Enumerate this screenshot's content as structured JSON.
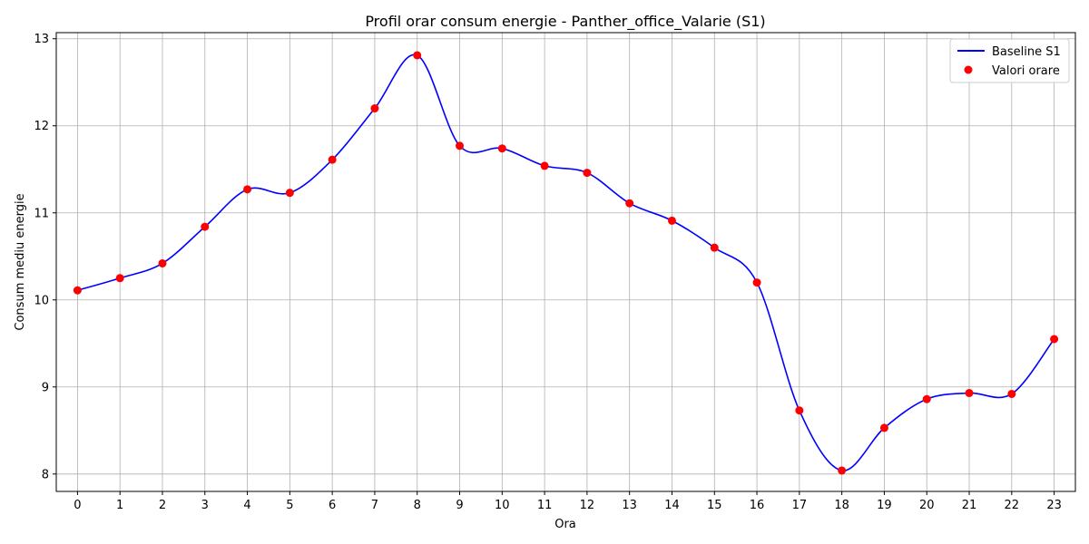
{
  "chart_data": {
    "type": "line",
    "title": "Profil orar consum energie - Panther_office_Valarie (S1)",
    "xlabel": "Ora",
    "ylabel": "Consum mediu energie",
    "x": [
      0,
      1,
      2,
      3,
      4,
      5,
      6,
      7,
      8,
      9,
      10,
      11,
      12,
      13,
      14,
      15,
      16,
      17,
      18,
      19,
      20,
      21,
      22,
      23
    ],
    "x_ticks": [
      "0",
      "1",
      "2",
      "3",
      "4",
      "5",
      "6",
      "7",
      "8",
      "9",
      "10",
      "11",
      "12",
      "13",
      "14",
      "15",
      "16",
      "17",
      "18",
      "19",
      "20",
      "21",
      "22",
      "23"
    ],
    "y_ticks": [
      "8",
      "9",
      "10",
      "11",
      "12",
      "13"
    ],
    "xlim": [
      -0.5,
      23.5
    ],
    "ylim": [
      7.8,
      13.07
    ],
    "grid": true,
    "legend_position": "top-right",
    "series": [
      {
        "name": "Baseline S1",
        "kind": "line",
        "color": "#0000ff",
        "values": [
          10.11,
          10.25,
          10.42,
          10.84,
          11.27,
          11.23,
          11.61,
          12.2,
          12.81,
          11.77,
          11.74,
          11.54,
          11.46,
          11.11,
          10.91,
          10.6,
          10.2,
          8.73,
          8.04,
          8.53,
          8.86,
          8.93,
          8.92,
          9.55
        ]
      },
      {
        "name": "Valori orare",
        "kind": "scatter",
        "color": "#ff0000",
        "values": [
          10.11,
          10.25,
          10.42,
          10.84,
          11.27,
          11.23,
          11.61,
          12.2,
          12.81,
          11.77,
          11.74,
          11.54,
          11.46,
          11.11,
          10.91,
          10.6,
          10.2,
          8.73,
          8.04,
          8.53,
          8.86,
          8.93,
          8.92,
          9.55
        ]
      }
    ]
  }
}
